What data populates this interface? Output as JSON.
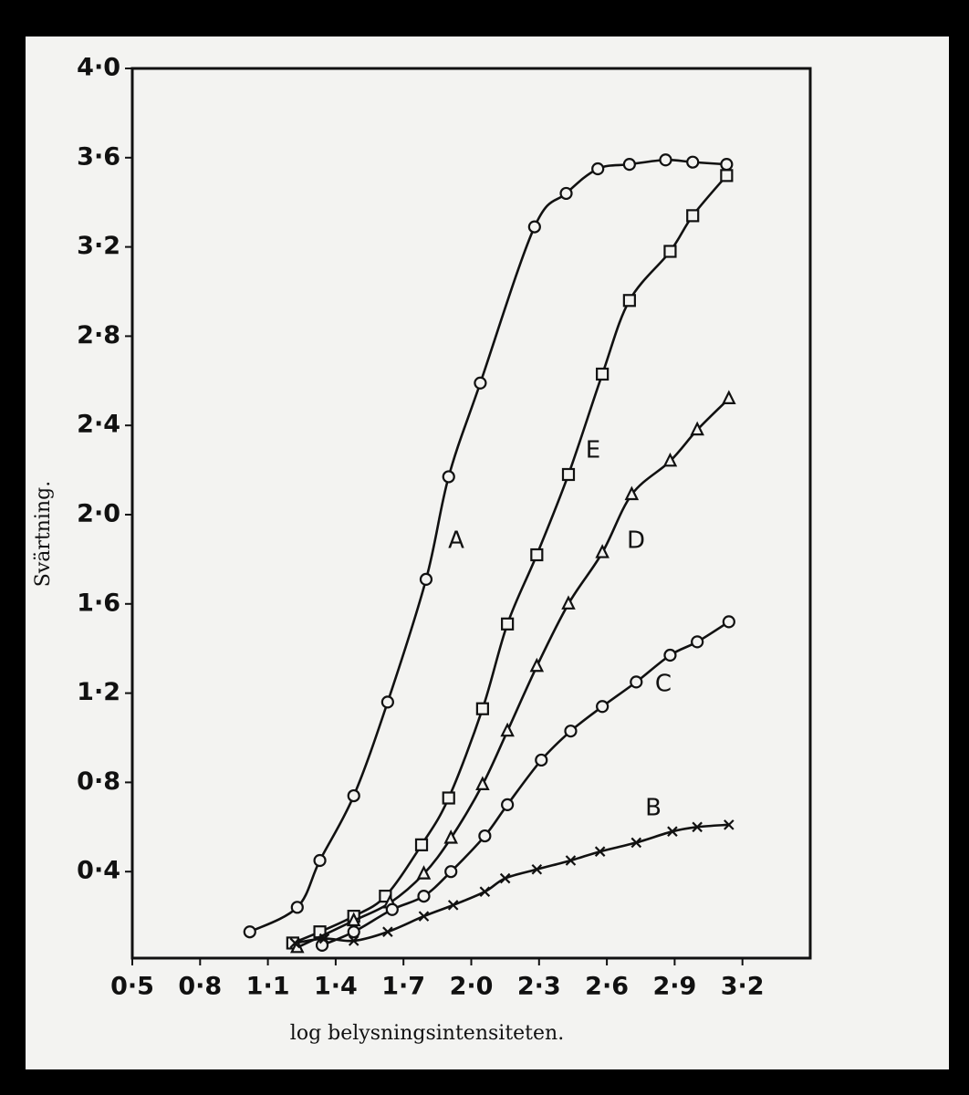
{
  "chart_data": {
    "type": "line",
    "xlabel": "log belysningsintensiteten.",
    "ylabel": "Svärtning.",
    "xlim": [
      0.5,
      3.5
    ],
    "ylim": [
      0,
      4.0
    ],
    "xticks": [
      {
        "value": 0.5,
        "label": "0·5"
      },
      {
        "value": 0.8,
        "label": "0·8"
      },
      {
        "value": 1.1,
        "label": "1·1"
      },
      {
        "value": 1.4,
        "label": "1·4"
      },
      {
        "value": 1.7,
        "label": "1·7"
      },
      {
        "value": 2.0,
        "label": "2·0"
      },
      {
        "value": 2.3,
        "label": "2·3"
      },
      {
        "value": 2.6,
        "label": "2·6"
      },
      {
        "value": 2.9,
        "label": "2·9"
      },
      {
        "value": 3.2,
        "label": "3·2"
      }
    ],
    "yticks": [
      {
        "value": 0.4,
        "label": "0·4"
      },
      {
        "value": 0.8,
        "label": "0·8"
      },
      {
        "value": 1.2,
        "label": "1·2"
      },
      {
        "value": 1.6,
        "label": "1·6"
      },
      {
        "value": 2.0,
        "label": "2·0"
      },
      {
        "value": 2.4,
        "label": "2·4"
      },
      {
        "value": 2.8,
        "label": "2·8"
      },
      {
        "value": 3.2,
        "label": "3·2"
      },
      {
        "value": 3.6,
        "label": "3·6"
      },
      {
        "value": 4.0,
        "label": "4·0"
      }
    ],
    "grid": false,
    "series": [
      {
        "name": "A",
        "color": "#111111",
        "marker": "circle",
        "x": [
          1.02,
          1.23,
          1.33,
          1.48,
          1.63,
          1.8,
          1.9,
          2.04,
          2.28,
          2.42,
          2.56,
          2.7,
          2.86,
          2.98,
          3.13
        ],
        "values": [
          0.13,
          0.24,
          0.45,
          0.74,
          1.16,
          1.71,
          2.17,
          2.59,
          3.29,
          3.44,
          3.55,
          3.57,
          3.59,
          3.58,
          3.57
        ]
      },
      {
        "name": "E",
        "color": "#111111",
        "marker": "square",
        "x": [
          1.21,
          1.33,
          1.48,
          1.62,
          1.78,
          1.9,
          2.05,
          2.16,
          2.29,
          2.43,
          2.58,
          2.7,
          2.88,
          2.98,
          3.13
        ],
        "values": [
          0.08,
          0.13,
          0.2,
          0.29,
          0.52,
          0.73,
          1.13,
          1.51,
          1.82,
          2.18,
          2.63,
          2.96,
          3.18,
          3.34,
          3.52
        ]
      },
      {
        "name": "D",
        "color": "#111111",
        "marker": "triangle",
        "x": [
          1.23,
          1.48,
          1.64,
          1.79,
          1.91,
          2.05,
          2.16,
          2.29,
          2.43,
          2.58,
          2.71,
          2.88,
          3.0,
          3.14
        ],
        "values": [
          0.06,
          0.18,
          0.26,
          0.39,
          0.55,
          0.79,
          1.03,
          1.32,
          1.6,
          1.83,
          2.09,
          2.24,
          2.38,
          2.52
        ]
      },
      {
        "name": "C",
        "color": "#111111",
        "marker": "circle",
        "x": [
          1.34,
          1.48,
          1.65,
          1.79,
          1.91,
          2.06,
          2.16,
          2.31,
          2.44,
          2.58,
          2.73,
          2.88,
          3.0,
          3.14
        ],
        "values": [
          0.07,
          0.13,
          0.23,
          0.29,
          0.4,
          0.56,
          0.7,
          0.9,
          1.03,
          1.14,
          1.25,
          1.37,
          1.43,
          1.52
        ]
      },
      {
        "name": "B",
        "color": "#111111",
        "marker": "cross",
        "x": [
          1.22,
          1.35,
          1.48,
          1.63,
          1.79,
          1.92,
          2.06,
          2.15,
          2.29,
          2.44,
          2.57,
          2.73,
          2.89,
          3.0,
          3.14
        ],
        "values": [
          0.08,
          0.1,
          0.09,
          0.13,
          0.2,
          0.25,
          0.31,
          0.37,
          0.41,
          0.45,
          0.49,
          0.53,
          0.58,
          0.6,
          0.61
        ]
      }
    ]
  }
}
